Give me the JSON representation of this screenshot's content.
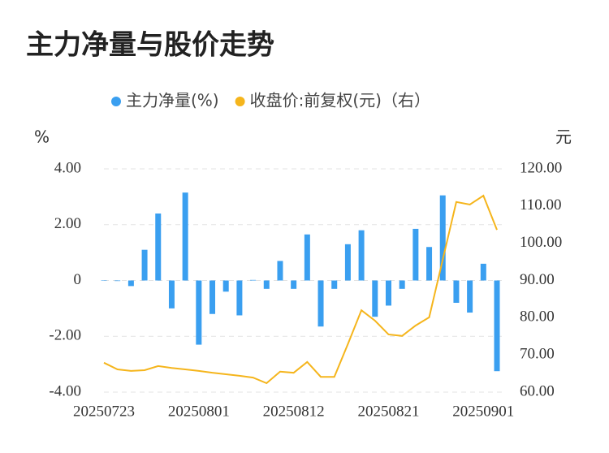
{
  "chart_data": {
    "type": "bar+line",
    "title": "主力净量与股价走势",
    "y_label": "%",
    "y2_label": "元",
    "categories": [
      "20250723",
      null,
      null,
      null,
      null,
      null,
      null,
      "20250801",
      null,
      null,
      null,
      null,
      null,
      null,
      "20250812",
      null,
      null,
      null,
      null,
      null,
      null,
      "20250821",
      null,
      null,
      null,
      null,
      null,
      null,
      "20250901",
      null
    ],
    "series": [
      {
        "name": "主力净量(%)",
        "type": "bar",
        "color": "#3a9ff0",
        "axis": "y",
        "values": [
          0,
          -0.02,
          -0.2,
          1.1,
          2.4,
          -1.0,
          3.15,
          -2.3,
          -1.2,
          -0.4,
          -1.25,
          0.02,
          -0.3,
          0.7,
          -0.3,
          1.65,
          -1.65,
          -0.3,
          1.3,
          1.8,
          -1.3,
          -0.9,
          -0.3,
          1.85,
          1.2,
          3.05,
          -0.8,
          -1.15,
          0.6,
          -3.25
        ]
      },
      {
        "name": "收盘价:前复权(元)（右）",
        "type": "line",
        "color": "#f5b51c",
        "axis": "y2",
        "values": [
          67.9,
          66.1,
          65.7,
          65.9,
          67.0,
          66.5,
          66.1,
          65.7,
          65.2,
          64.8,
          64.4,
          63.9,
          62.4,
          65.5,
          65.2,
          68.1,
          64.1,
          64.1,
          72.9,
          82.0,
          79.2,
          75.5,
          75.1,
          77.9,
          80.1,
          95.6,
          111.1,
          110.4,
          112.8,
          103.6
        ]
      }
    ],
    "ylim": [
      -4,
      4
    ],
    "yticks": [
      {
        "value": -4,
        "label": "-4.00"
      },
      {
        "value": -2,
        "label": "-2.00"
      },
      0,
      {
        "value": 2,
        "label": "2.00"
      },
      {
        "value": 4,
        "label": "4.00"
      }
    ],
    "y2lim": [
      60,
      120
    ],
    "y2ticks": [
      {
        "value": 60,
        "label": "60.00"
      },
      {
        "value": 70,
        "label": "70.00"
      },
      {
        "value": 80,
        "label": "80.00"
      },
      {
        "value": 90,
        "label": "90.00"
      },
      {
        "value": 100,
        "label": "100.00"
      },
      {
        "value": 110,
        "label": "110.00"
      },
      {
        "value": 120,
        "label": "120.00"
      }
    ],
    "grid": true,
    "legend": "top"
  }
}
